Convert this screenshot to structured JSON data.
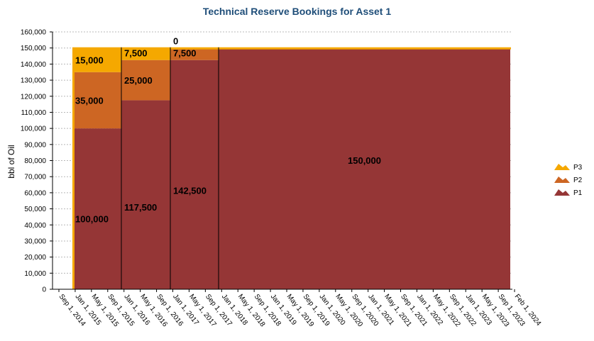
{
  "chart_data": {
    "type": "area",
    "title": "Technical Reserve Bookings for Asset 1",
    "ylabel": "bbl of Oil",
    "xlabel": "",
    "ylim": [
      0,
      160000
    ],
    "y_ticks": [
      "0",
      "10,000",
      "20,000",
      "30,000",
      "40,000",
      "50,000",
      "60,000",
      "70,000",
      "80,000",
      "90,000",
      "100,000",
      "110,000",
      "120,000",
      "130,000",
      "140,000",
      "150,000",
      "160,000"
    ],
    "x_ticks": [
      "Sep 1, 2014",
      "Jan 1, 2015",
      "May 1, 2015",
      "Sep 1, 2015",
      "Jan 1, 2016",
      "May 1, 2016",
      "Sep 1, 2016",
      "Jan 1, 2017",
      "May 1, 2017",
      "Sep 1, 2017",
      "Jan 1, 2018",
      "May 1, 2018",
      "Sep 1, 2018",
      "Jan 1, 2019",
      "May 1, 2019",
      "Sep 1, 2019",
      "Jan 1, 2020",
      "May 1, 2020",
      "Sep 1, 2020",
      "Jan 1, 2021",
      "May 1, 2021",
      "Sep 1, 2021",
      "Jan 1, 2022",
      "May 1, 2022",
      "Sep 1, 2022",
      "Jan 1, 2023",
      "May 1, 2023",
      "Sep 1, 2023",
      "Feb 1, 2024"
    ],
    "grid": true,
    "legend_position": "right",
    "periods": [
      {
        "start": "Dec 2014",
        "end": "Jan 1, 2016",
        "P1": 100000,
        "P2": 35000,
        "P3": 15000
      },
      {
        "start": "Jan 1, 2016",
        "end": "Jan 1, 2017",
        "P1": 117500,
        "P2": 25000,
        "P3": 7500
      },
      {
        "start": "Jan 1, 2017",
        "end": "Jan 1, 2018",
        "P1": 142500,
        "P2": 7500,
        "P3": 0
      },
      {
        "start": "Jan 1, 2018",
        "end": "Dec 2023",
        "P1": 150000,
        "P2": 0,
        "P3": 0
      }
    ],
    "data_labels": [
      {
        "text": "15,000",
        "series": "P3",
        "period": 0
      },
      {
        "text": "35,000",
        "series": "P2",
        "period": 0
      },
      {
        "text": "100,000",
        "series": "P1",
        "period": 0
      },
      {
        "text": "7,500",
        "series": "P3",
        "period": 1
      },
      {
        "text": "25,000",
        "series": "P2",
        "period": 1
      },
      {
        "text": "117,500",
        "series": "P1",
        "period": 1
      },
      {
        "text": "0",
        "series": "P3",
        "period": 2
      },
      {
        "text": "7,500",
        "series": "P2",
        "period": 2
      },
      {
        "text": "142,500",
        "series": "P1",
        "period": 2
      },
      {
        "text": "150,000",
        "series": "P1",
        "period": 3
      }
    ],
    "series": [
      {
        "name": "P3",
        "color": "#f5a800"
      },
      {
        "name": "P2",
        "color": "#cd6623"
      },
      {
        "name": "P1",
        "color": "#953636"
      }
    ]
  }
}
